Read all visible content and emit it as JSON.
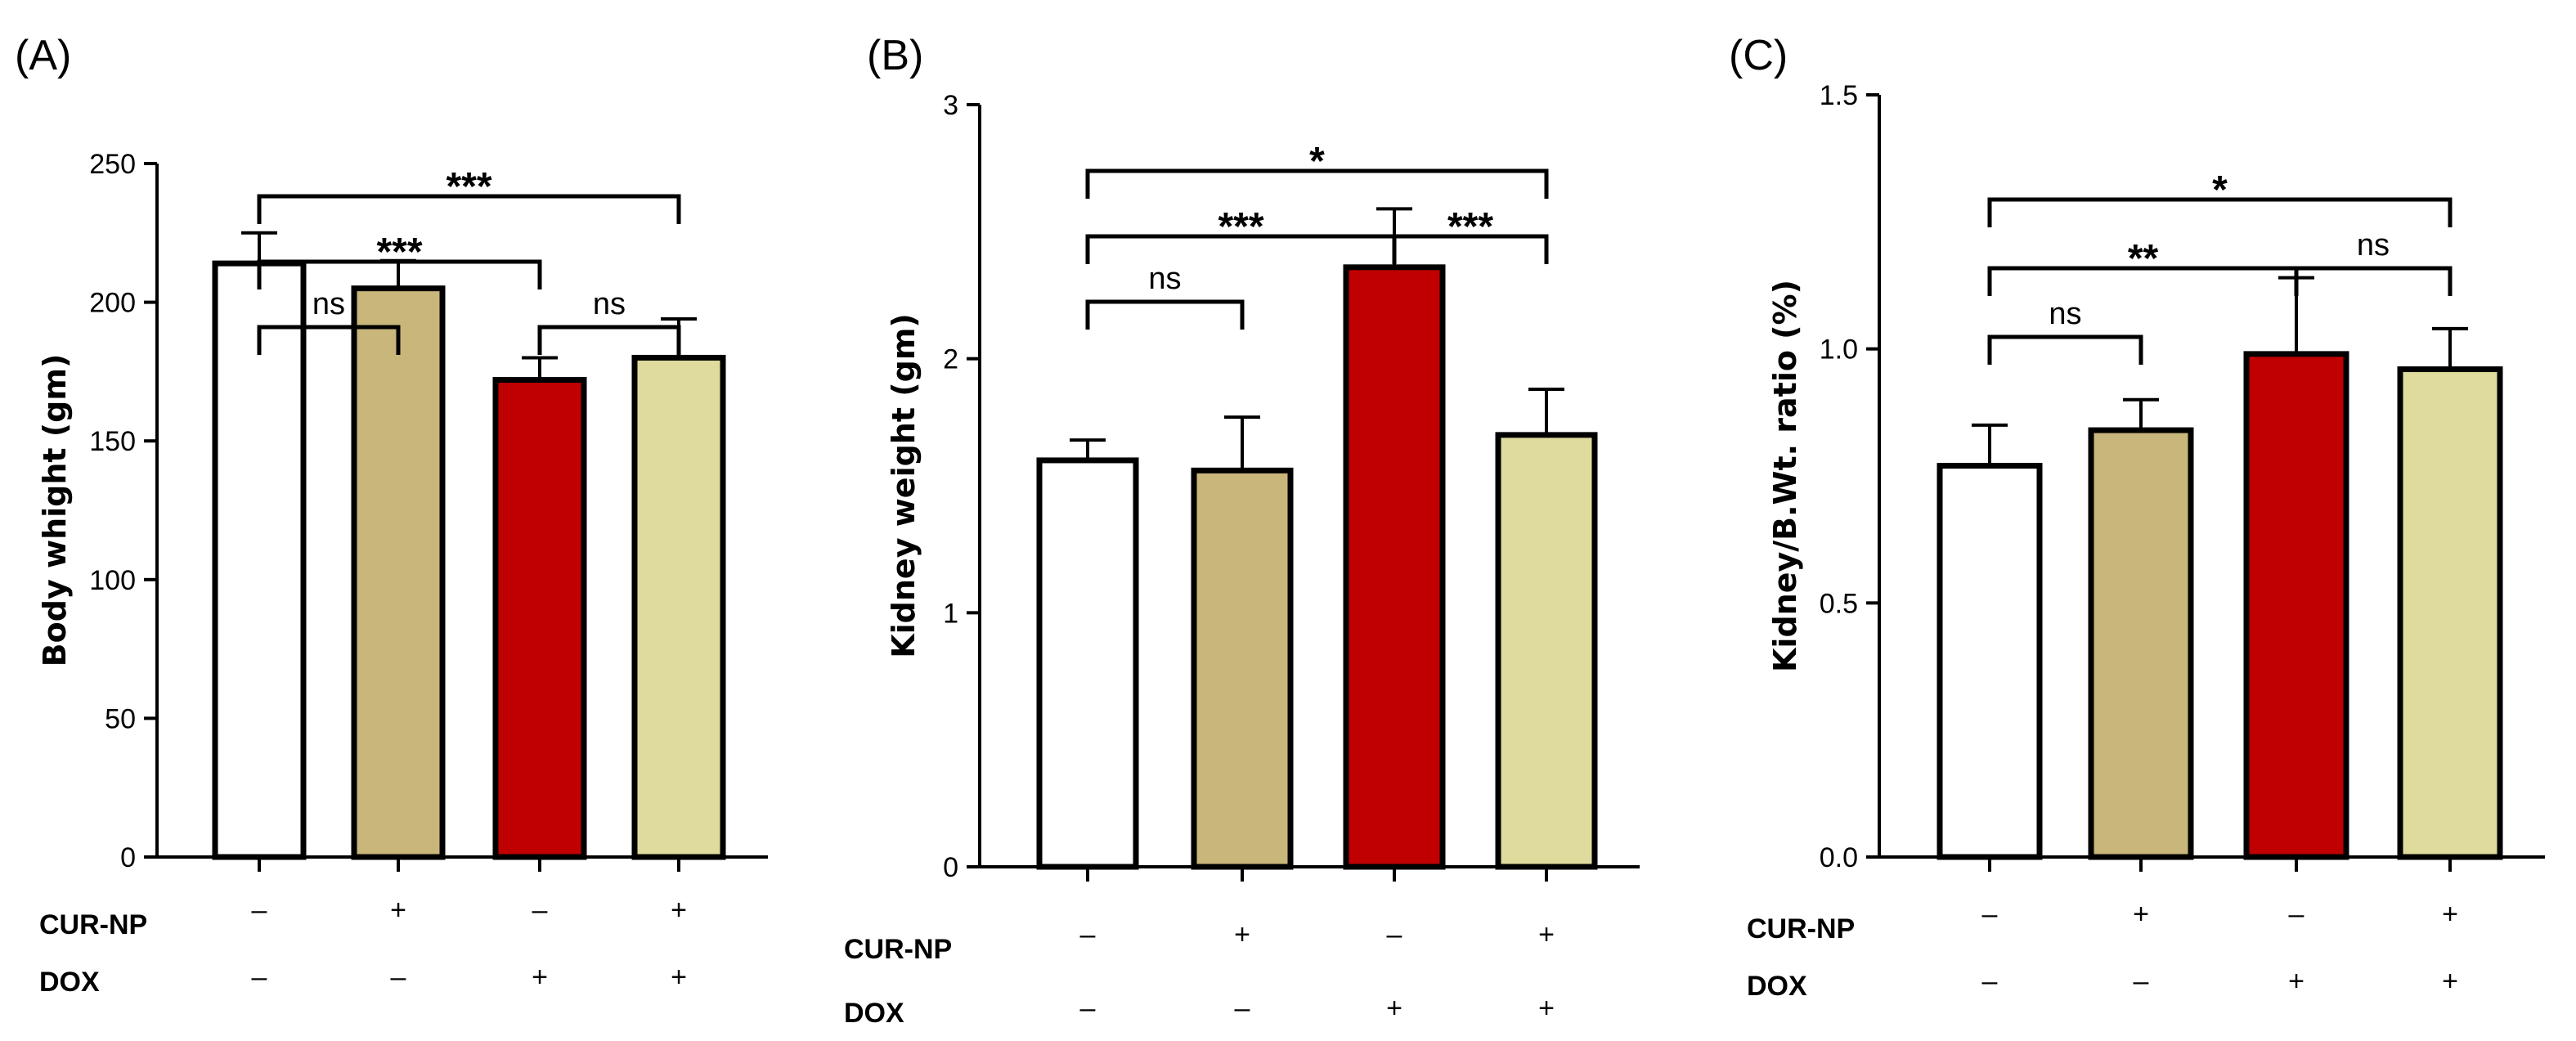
{
  "chart_data": [
    {
      "type": "bar",
      "panel": "(A)",
      "ylabel": "Body whight (gm)",
      "ylim": [
        0,
        250
      ],
      "yticks": [
        0,
        50,
        100,
        150,
        200,
        250
      ],
      "ytick_labels": [
        "0",
        "50",
        "100",
        "150",
        "200",
        "250"
      ],
      "cur_np": [
        "–",
        "+",
        "–",
        "+"
      ],
      "dox": [
        "–",
        "–",
        "+",
        "+"
      ],
      "values": [
        214,
        205,
        172,
        180
      ],
      "errors": [
        11,
        10,
        8,
        14
      ],
      "significance": [
        {
          "from": 0,
          "to": 1,
          "label": "ns",
          "level": 0
        },
        {
          "from": 2,
          "to": 3,
          "label": "ns",
          "level": 0
        },
        {
          "from": 0,
          "to": 2,
          "label": "***",
          "level": 1
        },
        {
          "from": 0,
          "to": 3,
          "label": "***",
          "level": 2
        }
      ]
    },
    {
      "type": "bar",
      "panel": "(B)",
      "ylabel": "Kidney weight (gm)",
      "ylim": [
        0,
        3
      ],
      "yticks": [
        0,
        1,
        2,
        3
      ],
      "ytick_labels": [
        "0",
        "1",
        "2",
        "3"
      ],
      "cur_np": [
        "–",
        "+",
        "–",
        "+"
      ],
      "dox": [
        "–",
        "–",
        "+",
        "+"
      ],
      "values": [
        1.6,
        1.56,
        2.36,
        1.7
      ],
      "errors": [
        0.08,
        0.21,
        0.23,
        0.18
      ],
      "significance": [
        {
          "from": 0,
          "to": 1,
          "label": "ns",
          "level": 0
        },
        {
          "from": 0,
          "to": 2,
          "label": "***",
          "level": 1
        },
        {
          "from": 2,
          "to": 3,
          "label": "***",
          "level": 1
        },
        {
          "from": 0,
          "to": 3,
          "label": "*",
          "level": 2
        }
      ]
    },
    {
      "type": "bar",
      "panel": "(C)",
      "ylabel": "Kidney/B.Wt. ratio (%)",
      "ylim": [
        0,
        1.5
      ],
      "yticks": [
        0,
        0.5,
        1.0,
        1.5
      ],
      "ytick_labels": [
        "0.0",
        "0.5",
        "1.0",
        "1.5"
      ],
      "cur_np": [
        "–",
        "+",
        "–",
        "+"
      ],
      "dox": [
        "–",
        "–",
        "+",
        "+"
      ],
      "values": [
        0.77,
        0.84,
        0.99,
        0.96
      ],
      "errors": [
        0.08,
        0.06,
        0.15,
        0.08
      ],
      "significance": [
        {
          "from": 0,
          "to": 1,
          "label": "ns",
          "level": 0
        },
        {
          "from": 0,
          "to": 2,
          "label": "**",
          "level": 1
        },
        {
          "from": 2,
          "to": 3,
          "label": "ns",
          "level": 1
        },
        {
          "from": 0,
          "to": 3,
          "label": "*",
          "level": 2
        }
      ]
    }
  ],
  "groups": {
    "cur_np_label": "CUR-NP",
    "dox_label": "DOX"
  },
  "colors": {
    "bar_fills": [
      "#ffffff",
      "#c8b67a",
      "#c00000",
      "#dedb9d"
    ],
    "outline": "#000000"
  }
}
